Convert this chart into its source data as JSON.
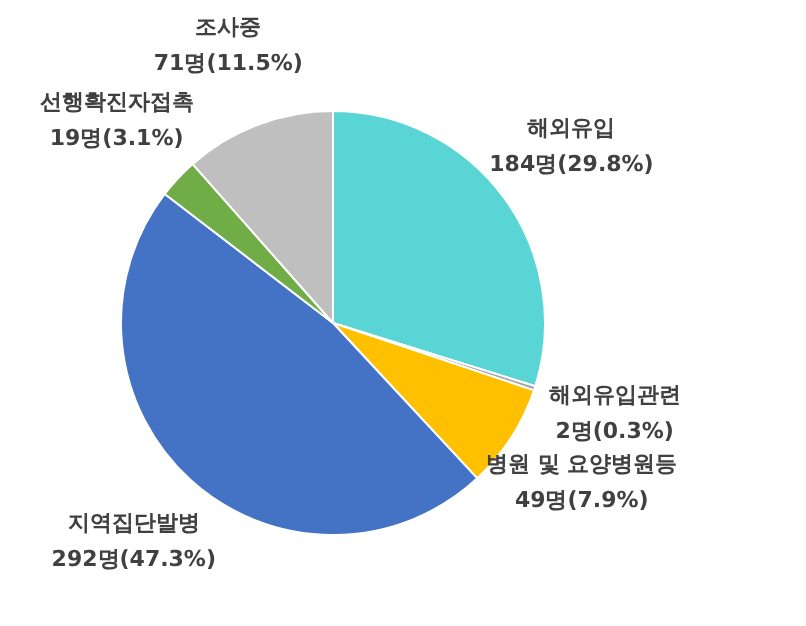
{
  "chart_data": {
    "type": "pie",
    "categories": [
      "해외유입",
      "해외유입관련",
      "병원 및 요양병원등",
      "지역집단발병",
      "선행확진자접촉",
      "조사중"
    ],
    "values": [
      184,
      2,
      49,
      292,
      19,
      71
    ],
    "value_labels": [
      "184명(29.8%)",
      "2명(0.3%)",
      "49명(7.9%)",
      "292명(47.3%)",
      "19명(3.1%)",
      "71명(11.5%)"
    ],
    "colors": [
      "#5ad5d5",
      "#a5a5a5",
      "#ffc000",
      "#4472c4",
      "#70ad47",
      "#bfbfbf"
    ],
    "legend": false
  }
}
